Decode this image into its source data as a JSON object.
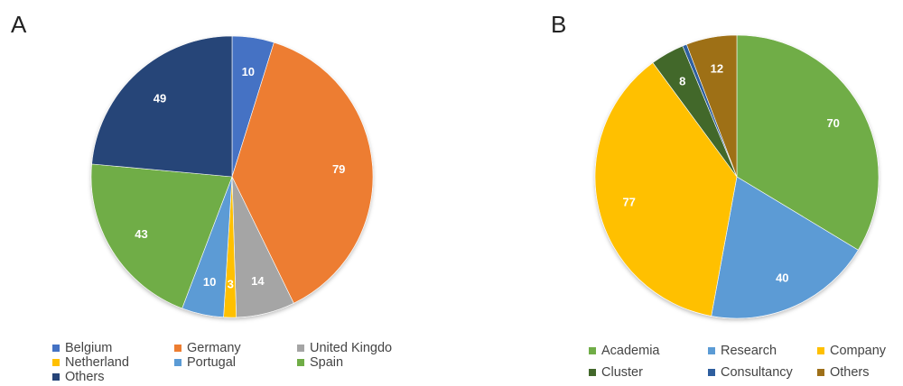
{
  "panels": {
    "a_label": "A",
    "b_label": "B"
  },
  "chart_data": [
    {
      "type": "pie",
      "panel": "A",
      "slices": [
        {
          "label": "Belgium",
          "value": 10,
          "color": "#4472c4"
        },
        {
          "label": "Germany",
          "value": 79,
          "color": "#ed7d31"
        },
        {
          "label": "United Kingdom",
          "legend_text": "United Kingdo",
          "value": 14,
          "color": "#a5a5a5"
        },
        {
          "label": "Netherland",
          "value": 3,
          "color": "#ffc000"
        },
        {
          "label": "Portugal",
          "value": 10,
          "color": "#5b9bd5"
        },
        {
          "label": "Spain",
          "value": 43,
          "color": "#70ad47"
        },
        {
          "label": "Others",
          "value": 49,
          "color": "#264478"
        }
      ]
    },
    {
      "type": "pie",
      "panel": "B",
      "slices": [
        {
          "label": "Academia",
          "value": 70,
          "color": "#70ad47",
          "show_label": true
        },
        {
          "label": "Research",
          "value": 40,
          "color": "#5b9bd5",
          "show_label": true
        },
        {
          "label": "Company",
          "value": 77,
          "color": "#ffc000",
          "show_label": true
        },
        {
          "label": "Cluster",
          "value": 8,
          "color": "#43682b",
          "show_label": true
        },
        {
          "label": "Consultancy",
          "value": 1,
          "color": "#2e5e9e",
          "show_label": false
        },
        {
          "label": "Others",
          "value": 12,
          "color": "#9e7019",
          "show_label": true
        }
      ]
    }
  ]
}
